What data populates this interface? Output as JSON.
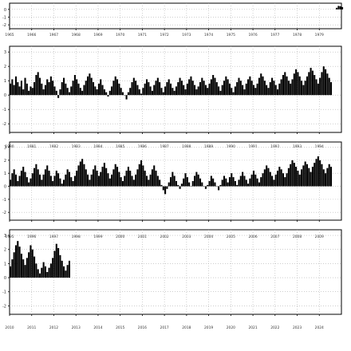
{
  "chart_data": [
    {
      "type": "bar",
      "panel": "panel-1",
      "x_tick_labels": [
        "1965",
        "1966",
        "1967",
        "1968",
        "1969",
        "1970",
        "1971",
        "1972",
        "1973",
        "1974",
        "1975",
        "1976",
        "1977",
        "1978",
        "1979"
      ],
      "y_tick_labels": [
        "0",
        "-1",
        "-2"
      ],
      "ylim": [
        -2.5,
        0.8
      ],
      "grid": true,
      "series": [
        {
          "start": 1979.75,
          "step": 0.0833,
          "values": [
            0.2,
            0.45,
            0.4,
            0.3
          ]
        }
      ]
    },
    {
      "type": "bar",
      "panel": "panel-2",
      "x_tick_labels": [
        "1980",
        "1981",
        "1982",
        "1983",
        "1984",
        "1985",
        "1986",
        "1987",
        "1988",
        "1989",
        "1990",
        "1991",
        "1992",
        "1993",
        "1994"
      ],
      "y_tick_labels": [
        "3",
        "2",
        "1",
        "0",
        "-1",
        "-2"
      ],
      "ylim": [
        -2.6,
        3.4
      ],
      "grid": true,
      "series": [
        {
          "start": 1980.0,
          "step": 0.0833,
          "values": [
            0.8,
            1.1,
            0.7,
            1.3,
            0.9,
            0.6,
            1.0,
            0.4,
            1.2,
            0.8,
            0.3,
            0.6,
            0.5,
            0.9,
            1.4,
            1.6,
            1.2,
            0.8,
            0.4,
            0.7,
            1.1,
            0.9,
            1.3,
            1.0,
            0.6,
            0.3,
            -0.2,
            0.4,
            0.9,
            1.2,
            0.8,
            0.5,
            0.2,
            0.6,
            1.0,
            1.4,
            1.1,
            0.8,
            0.5,
            0.3,
            0.7,
            1.0,
            1.3,
            1.5,
            1.2,
            0.9,
            0.6,
            0.4,
            0.8,
            1.1,
            0.7,
            0.4,
            0.2,
            -0.1,
            0.3,
            0.6,
            1.0,
            1.3,
            1.1,
            0.8,
            0.5,
            0.2,
            0.0,
            -0.3,
            0.2,
            0.5,
            0.9,
            1.2,
            1.0,
            0.7,
            0.4,
            0.1,
            0.5,
            0.8,
            1.1,
            0.9,
            0.6,
            0.3,
            0.7,
            1.0,
            1.2,
            0.9,
            0.5,
            0.2,
            0.6,
            0.9,
            1.1,
            0.8,
            0.5,
            0.3,
            0.6,
            0.9,
            1.2,
            1.0,
            0.7,
            0.4,
            0.8,
            1.1,
            1.3,
            1.0,
            0.7,
            0.4,
            0.6,
            0.9,
            1.2,
            1.0,
            0.7,
            0.5,
            0.8,
            1.1,
            1.4,
            1.2,
            0.9,
            0.6,
            0.3,
            0.7,
            1.0,
            1.3,
            1.1,
            0.8,
            0.5,
            0.2,
            0.6,
            0.9,
            1.2,
            1.0,
            0.7,
            0.4,
            0.8,
            1.1,
            1.3,
            1.0,
            0.7,
            0.5,
            0.8,
            1.2,
            1.5,
            1.3,
            1.0,
            0.7,
            0.5,
            0.9,
            1.2,
            1.0,
            0.7,
            0.4,
            0.8,
            1.1,
            1.4,
            1.6,
            1.3,
            1.0,
            0.8,
            1.1,
            1.5,
            1.8,
            1.6,
            1.3,
            1.0,
            0.7,
            1.0,
            1.3,
            1.6,
            1.9,
            1.7,
            1.4,
            1.1,
            0.8,
            1.2,
            1.6,
            2.0,
            1.8,
            1.5,
            1.2,
            0.9
          ]
        }
      ]
    },
    {
      "type": "bar",
      "panel": "panel-3",
      "x_tick_labels": [
        "1995",
        "1996",
        "1997",
        "1998",
        "1999",
        "2000",
        "2001",
        "2002",
        "2003",
        "2004",
        "2005",
        "2006",
        "2007",
        "2008",
        "2009"
      ],
      "y_tick_labels": [
        "3",
        "2",
        "1",
        "0",
        "-1",
        "-2"
      ],
      "ylim": [
        -2.6,
        3.4
      ],
      "grid": true,
      "series": [
        {
          "start": 1995.0,
          "step": 0.0833,
          "values": [
            0.5,
            1.0,
            1.3,
            0.9,
            0.4,
            0.8,
            1.2,
            1.5,
            1.1,
            0.7,
            0.3,
            0.6,
            1.0,
            1.4,
            1.7,
            1.3,
            0.9,
            0.5,
            0.9,
            1.3,
            1.6,
            1.2,
            0.8,
            0.4,
            0.8,
            1.2,
            1.0,
            0.6,
            0.2,
            0.5,
            0.9,
            1.3,
            1.1,
            0.7,
            0.4,
            0.8,
            1.2,
            1.6,
            1.9,
            2.1,
            1.7,
            1.3,
            0.9,
            0.5,
            0.9,
            1.3,
            1.6,
            1.2,
            0.8,
            1.1,
            1.5,
            1.8,
            1.4,
            1.0,
            0.6,
            0.9,
            1.3,
            1.7,
            1.5,
            1.1,
            0.7,
            0.4,
            0.8,
            1.2,
            1.5,
            1.2,
            0.8,
            0.5,
            0.9,
            1.3,
            1.7,
            2.0,
            1.6,
            1.2,
            0.8,
            0.5,
            0.9,
            1.3,
            1.6,
            1.2,
            0.8,
            0.5,
            0.1,
            -0.3,
            -0.6,
            -0.2,
            0.3,
            0.7,
            1.1,
            0.8,
            0.4,
            0.1,
            -0.2,
            0.2,
            0.6,
            1.0,
            0.7,
            0.3,
            0.0,
            0.4,
            0.8,
            1.1,
            0.9,
            0.6,
            0.3,
            0.0,
            -0.2,
            0.1,
            0.4,
            0.8,
            0.6,
            0.3,
            0.0,
            -0.3,
            0.1,
            0.5,
            0.8,
            0.6,
            0.3,
            0.7,
            1.0,
            0.7,
            0.4,
            0.1,
            0.5,
            0.8,
            1.1,
            0.8,
            0.5,
            0.2,
            0.6,
            0.9,
            1.2,
            0.9,
            0.6,
            0.3,
            0.7,
            1.0,
            1.3,
            1.6,
            1.4,
            1.1,
            0.8,
            0.5,
            0.9,
            1.2,
            1.5,
            1.3,
            1.0,
            0.7,
            1.0,
            1.4,
            1.7,
            2.0,
            1.8,
            1.5,
            1.2,
            0.9,
            1.3,
            1.6,
            1.9,
            1.7,
            1.4,
            1.1,
            1.5,
            1.8,
            2.1,
            2.3,
            2.0,
            1.7,
            1.3,
            1.0,
            1.4,
            1.7,
            1.5
          ]
        }
      ]
    },
    {
      "type": "bar",
      "panel": "panel-4",
      "x_tick_labels": [
        "2010",
        "2011",
        "2012",
        "2013",
        "2014",
        "2015",
        "2016",
        "2017",
        "2018",
        "2019",
        "2020",
        "2021",
        "2022",
        "2023",
        "2024"
      ],
      "y_tick_labels": [
        "3",
        "2",
        "1",
        "0",
        "-1",
        "-2"
      ],
      "ylim": [
        -2.6,
        3.4
      ],
      "grid": true,
      "series": [
        {
          "start": 2010.0,
          "step": 0.0833,
          "values": [
            0.8,
            1.3,
            1.8,
            2.3,
            2.6,
            2.2,
            1.7,
            1.3,
            0.9,
            1.4,
            1.8,
            2.3,
            2.0,
            1.5,
            1.0,
            0.6,
            0.3,
            0.7,
            1.1,
            0.8,
            0.4,
            0.7,
            1.0,
            1.4,
            1.9,
            2.4,
            2.1,
            1.6,
            1.2,
            0.8,
            0.5,
            0.9,
            1.2
          ]
        }
      ]
    }
  ]
}
